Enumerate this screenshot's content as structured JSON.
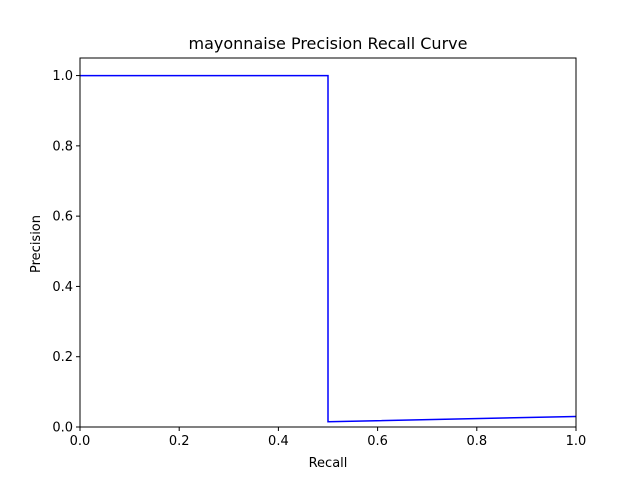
{
  "chart_data": {
    "type": "line",
    "title": "mayonnaise Precision Recall Curve",
    "xlabel": "Recall",
    "ylabel": "Precision",
    "xlim": [
      0.0,
      1.0
    ],
    "ylim": [
      0.0,
      1.05
    ],
    "x_ticks": [
      0.0,
      0.2,
      0.4,
      0.6,
      0.8,
      1.0
    ],
    "x_tick_labels": [
      "0.0",
      "0.2",
      "0.4",
      "0.6",
      "0.8",
      "1.0"
    ],
    "y_ticks": [
      0.0,
      0.2,
      0.4,
      0.6,
      0.8,
      1.0
    ],
    "y_tick_labels": [
      "0.0",
      "0.2",
      "0.4",
      "0.6",
      "0.8",
      "1.0"
    ],
    "grid": false,
    "colors": {
      "line": "#0000ff"
    },
    "series": [
      {
        "x": [
          0.0,
          0.5,
          0.5,
          1.0
        ],
        "y": [
          1.0,
          1.0,
          0.015,
          0.03
        ]
      }
    ]
  }
}
